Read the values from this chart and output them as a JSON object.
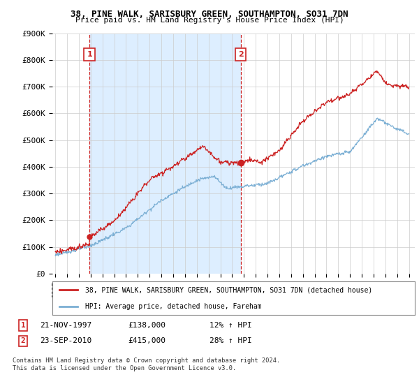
{
  "title1": "38, PINE WALK, SARISBURY GREEN, SOUTHAMPTON, SO31 7DN",
  "title2": "Price paid vs. HM Land Registry's House Price Index (HPI)",
  "legend_line1": "38, PINE WALK, SARISBURY GREEN, SOUTHAMPTON, SO31 7DN (detached house)",
  "legend_line2": "HPI: Average price, detached house, Fareham",
  "annotation1_label": "1",
  "annotation1_date": "21-NOV-1997",
  "annotation1_price": "£138,000",
  "annotation1_hpi": "12% ↑ HPI",
  "annotation2_label": "2",
  "annotation2_date": "23-SEP-2010",
  "annotation2_price": "£415,000",
  "annotation2_hpi": "28% ↑ HPI",
  "footnote": "Contains HM Land Registry data © Crown copyright and database right 2024.\nThis data is licensed under the Open Government Licence v3.0.",
  "hpi_color": "#7bafd4",
  "price_color": "#cc2222",
  "vline_color": "#cc2222",
  "background_color": "#ffffff",
  "grid_color": "#cccccc",
  "shade_color": "#ddeeff",
  "ylim": [
    0,
    900000
  ],
  "yticks": [
    0,
    100000,
    200000,
    300000,
    400000,
    500000,
    600000,
    700000,
    800000,
    900000
  ],
  "ytick_labels": [
    "£0",
    "£100K",
    "£200K",
    "£300K",
    "£400K",
    "£500K",
    "£600K",
    "£700K",
    "£800K",
    "£900K"
  ],
  "xlim_start": 1994.75,
  "xlim_end": 2025.5,
  "xticks": [
    1995,
    1996,
    1997,
    1998,
    1999,
    2000,
    2001,
    2002,
    2003,
    2004,
    2005,
    2006,
    2007,
    2008,
    2009,
    2010,
    2011,
    2012,
    2013,
    2014,
    2015,
    2016,
    2017,
    2018,
    2019,
    2020,
    2021,
    2022,
    2023,
    2024,
    2025
  ],
  "purchase1_year": 1997.9,
  "purchase1_value": 138000,
  "purchase2_year": 2010.73,
  "purchase2_value": 415000
}
